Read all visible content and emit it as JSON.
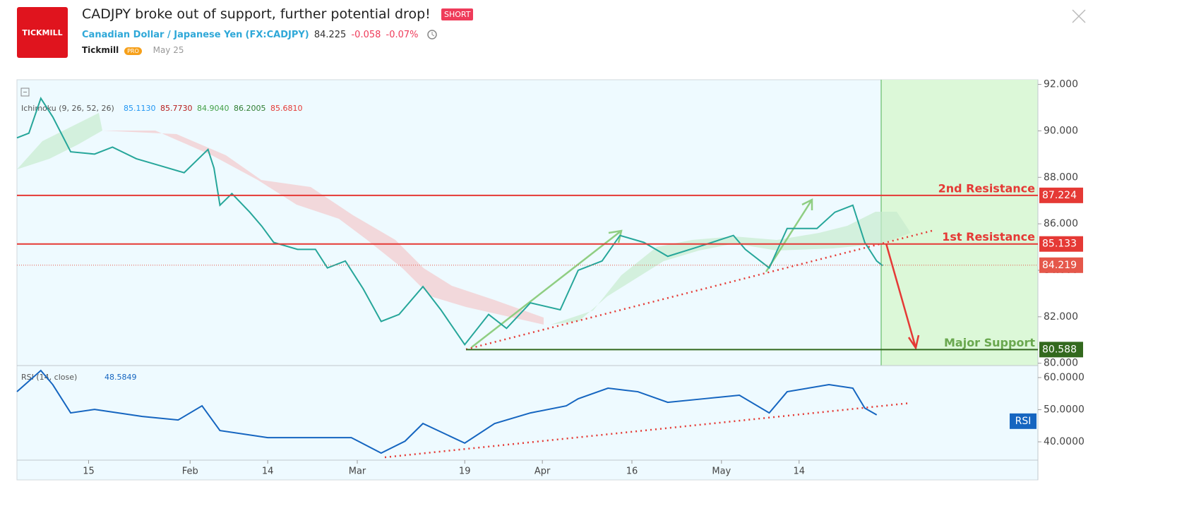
{
  "header": {
    "logo": "TICKMILL",
    "title": "CADJPY broke out of support, further potential drop!",
    "badge": "SHORT",
    "instrument": "Canadian Dollar / Japanese Yen",
    "symbol": "(FX:CADJPY)",
    "price": "84.225",
    "change": "-0.058",
    "change_pct": "-0.07%",
    "author": "Tickmill",
    "author_badge": "PRO",
    "date": "May 25"
  },
  "chart": {
    "xlim": [
      3,
      174
    ],
    "xticks": [
      15,
      {
        "value": 32,
        "label": "Feb"
      },
      {
        "value": 45,
        "label": "14"
      },
      {
        "value": 60,
        "label": "Mar"
      },
      {
        "value": 78,
        "label": "19"
      },
      {
        "value": 91,
        "label": "Apr"
      },
      {
        "value": 106,
        "label": "16"
      },
      {
        "value": 121,
        "label": "May"
      },
      {
        "value": 134,
        "label": "14"
      }
    ],
    "price": {
      "indicator": "Ichimoku (9, 26, 52, 26)",
      "indicator_values": [
        {
          "value": "85.1130",
          "color": "#2196f3"
        },
        {
          "value": "85.7730",
          "color": "#b71c1c"
        },
        {
          "value": "84.9040",
          "color": "#43a047"
        },
        {
          "value": "86.2005",
          "color": "#2e7d32"
        },
        {
          "value": "85.6810",
          "color": "#e53935"
        }
      ],
      "ylim": [
        79.9,
        92.2
      ],
      "yticks": [
        {
          "value": 80,
          "label": "80.000"
        },
        {
          "value": 82,
          "label": "82.000"
        },
        {
          "value": 84,
          "label": "84.000"
        },
        {
          "value": 86,
          "label": "86.000"
        },
        {
          "value": 88,
          "label": "88.000"
        },
        {
          "value": 90,
          "label": "90.000"
        },
        {
          "value": 92,
          "label": "92.000"
        }
      ],
      "x": [
        3,
        5,
        7,
        9,
        12,
        16,
        19,
        23,
        27,
        31,
        35,
        36,
        37,
        39,
        42,
        44,
        46,
        50,
        53,
        55,
        58,
        61,
        64,
        67,
        71,
        74,
        78,
        82,
        85,
        89,
        94,
        97,
        101,
        104,
        108,
        112,
        117,
        123,
        125,
        129,
        132,
        137,
        140,
        143,
        145,
        147,
        148
      ],
      "close": [
        89.7,
        89.9,
        91.4,
        90.6,
        89.1,
        89.0,
        89.3,
        88.8,
        88.5,
        88.2,
        89.2,
        88.4,
        86.8,
        87.3,
        86.5,
        85.9,
        85.2,
        84.9,
        84.9,
        84.1,
        84.4,
        83.2,
        81.8,
        82.1,
        83.3,
        82.3,
        80.8,
        82.1,
        81.5,
        82.6,
        82.3,
        84.0,
        84.4,
        85.5,
        85.2,
        84.6,
        85.0,
        85.5,
        84.9,
        84.1,
        85.8,
        85.8,
        86.5,
        86.8,
        85.2,
        84.4,
        84.2
      ],
      "color": "#26a69a",
      "levels": [
        {
          "name": "2nd Resistance",
          "value": 87.224,
          "color": "#e53935"
        },
        {
          "name": "1st Resistance",
          "value": 85.133,
          "color": "#e53935"
        },
        {
          "name": "Major Support",
          "value": 80.588,
          "color": "#33691e"
        }
      ],
      "last": {
        "value": 84.219,
        "color": "#e5574a"
      }
    },
    "rsi": {
      "label": "RSI (14, close)",
      "current": "48.5849",
      "badge": "RSI",
      "ylim": [
        34.3,
        63.3
      ],
      "yticks": [
        {
          "value": 40,
          "label": "40.0000"
        },
        {
          "value": 50,
          "label": "50.0000"
        },
        {
          "value": 60,
          "label": "60.0000"
        }
      ],
      "x": [
        3,
        7,
        9,
        12,
        16,
        24,
        30,
        34,
        37,
        45,
        53,
        59,
        64,
        68,
        71,
        78,
        83,
        89,
        95,
        97,
        102,
        107,
        112,
        118,
        124,
        129,
        132,
        139,
        143,
        145,
        147
      ],
      "values": [
        55.6,
        62.2,
        57.8,
        49,
        50.1,
        47.9,
        46.8,
        51.2,
        43.5,
        41.3,
        41.3,
        41.3,
        36.5,
        40.2,
        45.7,
        39.6,
        45.7,
        49,
        51.2,
        53.4,
        56.7,
        55.6,
        52.3,
        53.4,
        54.5,
        49,
        55.6,
        57.8,
        56.7,
        50.5,
        48.4
      ],
      "color": "#1565c0"
    }
  }
}
